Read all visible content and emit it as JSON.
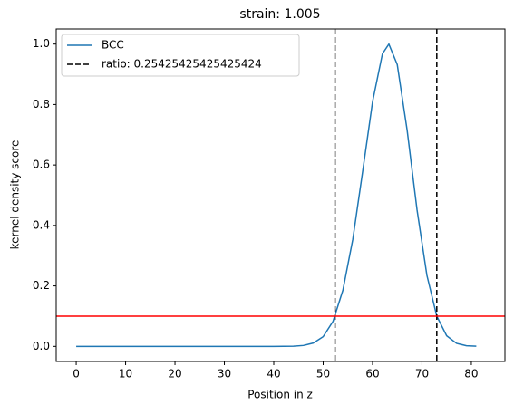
{
  "chart_data": {
    "type": "line",
    "title": "strain: 1.005",
    "x_label": "Position in z",
    "y_label": "kernel density score",
    "x": [
      0,
      10,
      20,
      30,
      40,
      44,
      46,
      48,
      50,
      52,
      54,
      56,
      58,
      60,
      62,
      63.3,
      65,
      67,
      69,
      71,
      73,
      75,
      77,
      79,
      81
    ],
    "series": [
      {
        "name": "BCC",
        "color": "#1f77b4",
        "values": [
          0,
          0,
          0,
          0,
          0,
          0.0007,
          0.003,
          0.011,
          0.032,
          0.083,
          0.186,
          0.354,
          0.579,
          0.809,
          0.968,
          1.0,
          0.932,
          0.715,
          0.452,
          0.235,
          0.1,
          0.035,
          0.01,
          0.002,
          0.0005
        ]
      }
    ],
    "vlines": {
      "name": "ratio: 0.25425425425425424",
      "color": "#000000",
      "values": [
        52.4,
        73.0
      ]
    },
    "hline": {
      "value": 0.1,
      "color": "#ff0000"
    },
    "xlim": [
      -4.05,
      86.8
    ],
    "ylim": [
      -0.05,
      1.05
    ],
    "xticks": [
      0,
      10,
      20,
      30,
      40,
      50,
      60,
      70,
      80
    ],
    "yticks": [
      {
        "value": 0,
        "label": "0.0"
      },
      {
        "value": 0.2,
        "label": "0.2"
      },
      {
        "value": 0.4,
        "label": "0.4"
      },
      {
        "value": 0.6,
        "label": "0.6"
      },
      {
        "value": 0.8,
        "label": "0.8"
      },
      {
        "value": 1.0,
        "label": "1.0"
      }
    ],
    "legend": "upper left"
  }
}
